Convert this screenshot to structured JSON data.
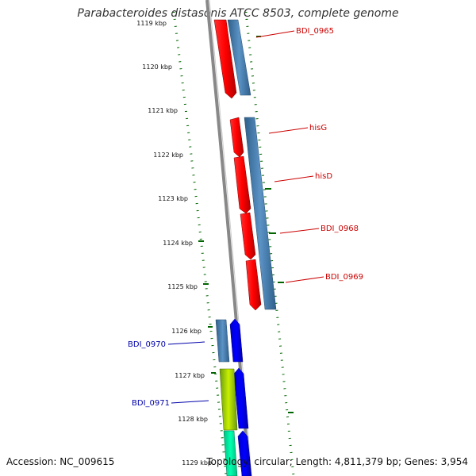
{
  "header": {
    "title": "Parabacteroides distasonis ATCC 8503, complete genome"
  },
  "footer": {
    "accession": "Accession: NC_009615",
    "summary": "Topology: circular; Length: 4,811,379 bp; Genes: 3,954"
  },
  "axis": {
    "kbp_labels": [
      "1119 kbp",
      "1120 kbp",
      "1121 kbp",
      "1122 kbp",
      "1123 kbp",
      "1124 kbp",
      "1125 kbp",
      "1126 kbp",
      "1127 kbp",
      "1128 kbp",
      "1129 kbp"
    ]
  },
  "genes": [
    {
      "label": "BDI_0965",
      "strand": "forward",
      "color": "#cc0000"
    },
    {
      "label": "hisG",
      "strand": "forward",
      "color": "#cc0000"
    },
    {
      "label": "hisD",
      "strand": "forward",
      "color": "#cc0000"
    },
    {
      "label": "BDI_0968",
      "strand": "forward",
      "color": "#cc0000"
    },
    {
      "label": "BDI_0969",
      "strand": "forward",
      "color": "#cc0000"
    },
    {
      "label": "BDI_0970",
      "strand": "reverse",
      "color": "#0000aa"
    },
    {
      "label": "BDI_0971",
      "strand": "reverse",
      "color": "#0000aa"
    }
  ],
  "colors": {
    "forward_gene": "#ff0000",
    "reverse_gene": "#0000ff",
    "cds_track": "#4682b4",
    "backbone": "#808080",
    "gc_dots": "#006400",
    "gene_green": "#7cba2a",
    "gene_teal": "#00e5a0"
  }
}
